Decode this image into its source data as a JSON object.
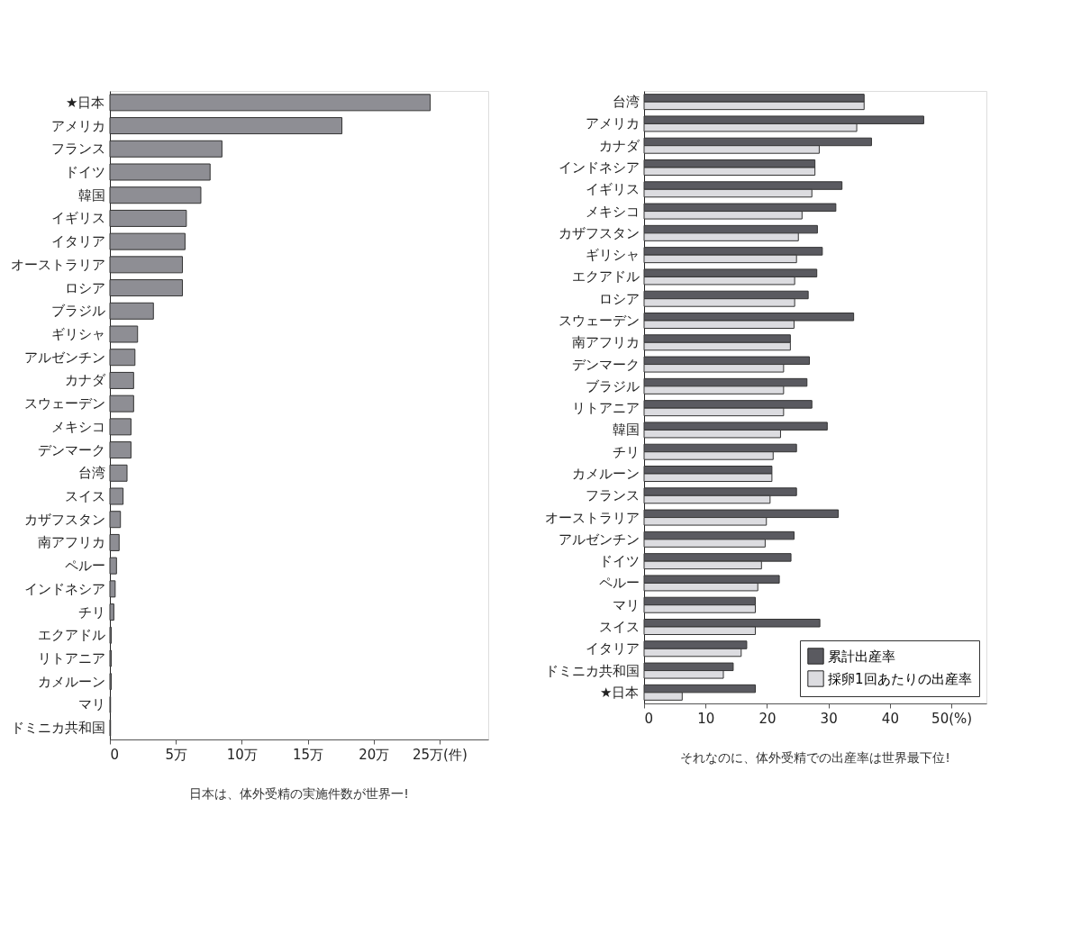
{
  "chart_data": [
    {
      "type": "bar",
      "orientation": "horizontal",
      "categories": [
        "★日本",
        "アメリカ",
        "フランス",
        "ドイツ",
        "韓国",
        "イギリス",
        "イタリア",
        "オーストラリア",
        "ロシア",
        "ブラジル",
        "ギリシャ",
        "アルゼンチン",
        "カナダ",
        "スウェーデン",
        "メキシコ",
        "デンマーク",
        "台湾",
        "スイス",
        "カザフスタン",
        "南アフリカ",
        "ペルー",
        "インドネシア",
        "チリ",
        "エクアドル",
        "リトアニア",
        "カメルーン",
        "マリ",
        "ドミニカ共和国"
      ],
      "values": [
        24.3,
        17.6,
        8.5,
        7.6,
        6.9,
        5.8,
        5.7,
        5.5,
        5.5,
        3.3,
        2.1,
        1.9,
        1.8,
        1.8,
        1.6,
        1.6,
        1.3,
        1.0,
        0.8,
        0.7,
        0.5,
        0.4,
        0.3,
        0.1,
        0.1,
        0.1,
        0.05,
        0.05
      ],
      "color": "#8e8e94",
      "xlim": [
        0,
        28.7
      ],
      "xticks": [
        0,
        {
          "value": 5,
          "label": "5万"
        },
        {
          "value": 10,
          "label": "10万"
        },
        {
          "value": 15,
          "label": "15万"
        },
        {
          "value": 20,
          "label": "20万"
        },
        {
          "value": 25,
          "label": "25万(件)"
        }
      ],
      "grid": false,
      "annotations": [
        "日本は、体外受精の実施件数が世界一!"
      ]
    },
    {
      "type": "bar",
      "orientation": "horizontal",
      "categories": [
        "台湾",
        "アメリカ",
        "カナダ",
        "インドネシア",
        "イギリス",
        "メキシコ",
        "カザフスタン",
        "ギリシャ",
        "エクアドル",
        "ロシア",
        "スウェーデン",
        "南アフリカ",
        "デンマーク",
        "ブラジル",
        "リトアニア",
        "韓国",
        "チリ",
        "カメルーン",
        "フランス",
        "オーストラリア",
        "アルゼンチン",
        "ドイツ",
        "ペルー",
        "マリ",
        "スイス",
        "イタリア",
        "ドミニカ共和国",
        "★日本"
      ],
      "series": [
        {
          "name": "累計出産率",
          "color": "#5a5a60",
          "values": [
            35.8,
            45.5,
            37.0,
            27.8,
            32.2,
            31.2,
            28.2,
            29.0,
            28.1,
            26.7,
            34.1,
            23.8,
            26.9,
            26.5,
            27.3,
            29.8,
            24.8,
            20.8,
            24.8,
            31.6,
            24.4,
            23.9,
            22.0,
            18.1,
            28.6,
            16.7,
            14.5,
            18.1
          ]
        },
        {
          "name": "採卵1回あたりの出産率",
          "color": "#dcdce0",
          "values": [
            35.8,
            34.6,
            28.5,
            27.8,
            27.3,
            25.7,
            25.1,
            24.8,
            24.5,
            24.5,
            24.4,
            23.8,
            22.7,
            22.7,
            22.7,
            22.2,
            21.0,
            20.8,
            20.5,
            19.9,
            19.7,
            19.1,
            18.5,
            18.1,
            18.1,
            15.8,
            12.9,
            6.2
          ]
        }
      ],
      "xlim": [
        0,
        55.7
      ],
      "xticks": [
        0,
        10,
        20,
        30,
        40,
        {
          "value": 50,
          "label": "50(%)"
        }
      ],
      "grid": false,
      "legend": "bottom right",
      "annotations": [
        "それなのに、体外受精での出産率は世界最下位!"
      ]
    }
  ]
}
